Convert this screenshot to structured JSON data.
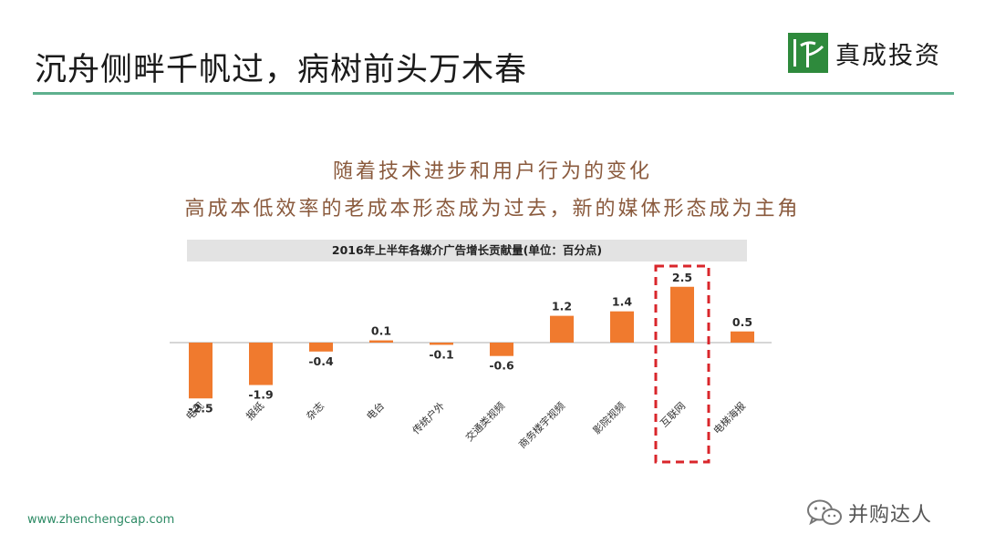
{
  "header": {
    "title": "沉舟侧畔千帆过，病树前头万木春",
    "brand_name": "真成投资",
    "rule_color": "#5fb08e"
  },
  "subtitle": {
    "line1": "随着技术进步和用户行为的变化",
    "line2": "高成本低效率的老成本形态成为过去，新的媒体形态成为主角"
  },
  "chart_data": {
    "type": "bar",
    "title": "2016年上半年各媒介广告增长贡献量(单位：百分点)",
    "categories": [
      "电视",
      "报纸",
      "杂志",
      "电台",
      "传统户外",
      "交通类视频",
      "商务楼宇视频",
      "影院视频",
      "互联网",
      "电梯海报"
    ],
    "values": [
      -2.5,
      -1.9,
      -0.4,
      0.1,
      -0.1,
      -0.6,
      1.2,
      1.4,
      2.5,
      0.5
    ],
    "value_labels": [
      "-2.5",
      "-1.9",
      "-0.4",
      "0.1",
      "-0.1",
      "-0.6",
      "1.2",
      "1.4",
      "2.5",
      "0.5"
    ],
    "bar_color": "#f07a2e",
    "highlight_category": "互联网",
    "highlight_color": "#d9262b",
    "xlabel": "",
    "ylabel": "",
    "grid": false,
    "legend": "none"
  },
  "footer": {
    "url": "www.zhenchengcap.com",
    "watermark": "并购达人"
  }
}
